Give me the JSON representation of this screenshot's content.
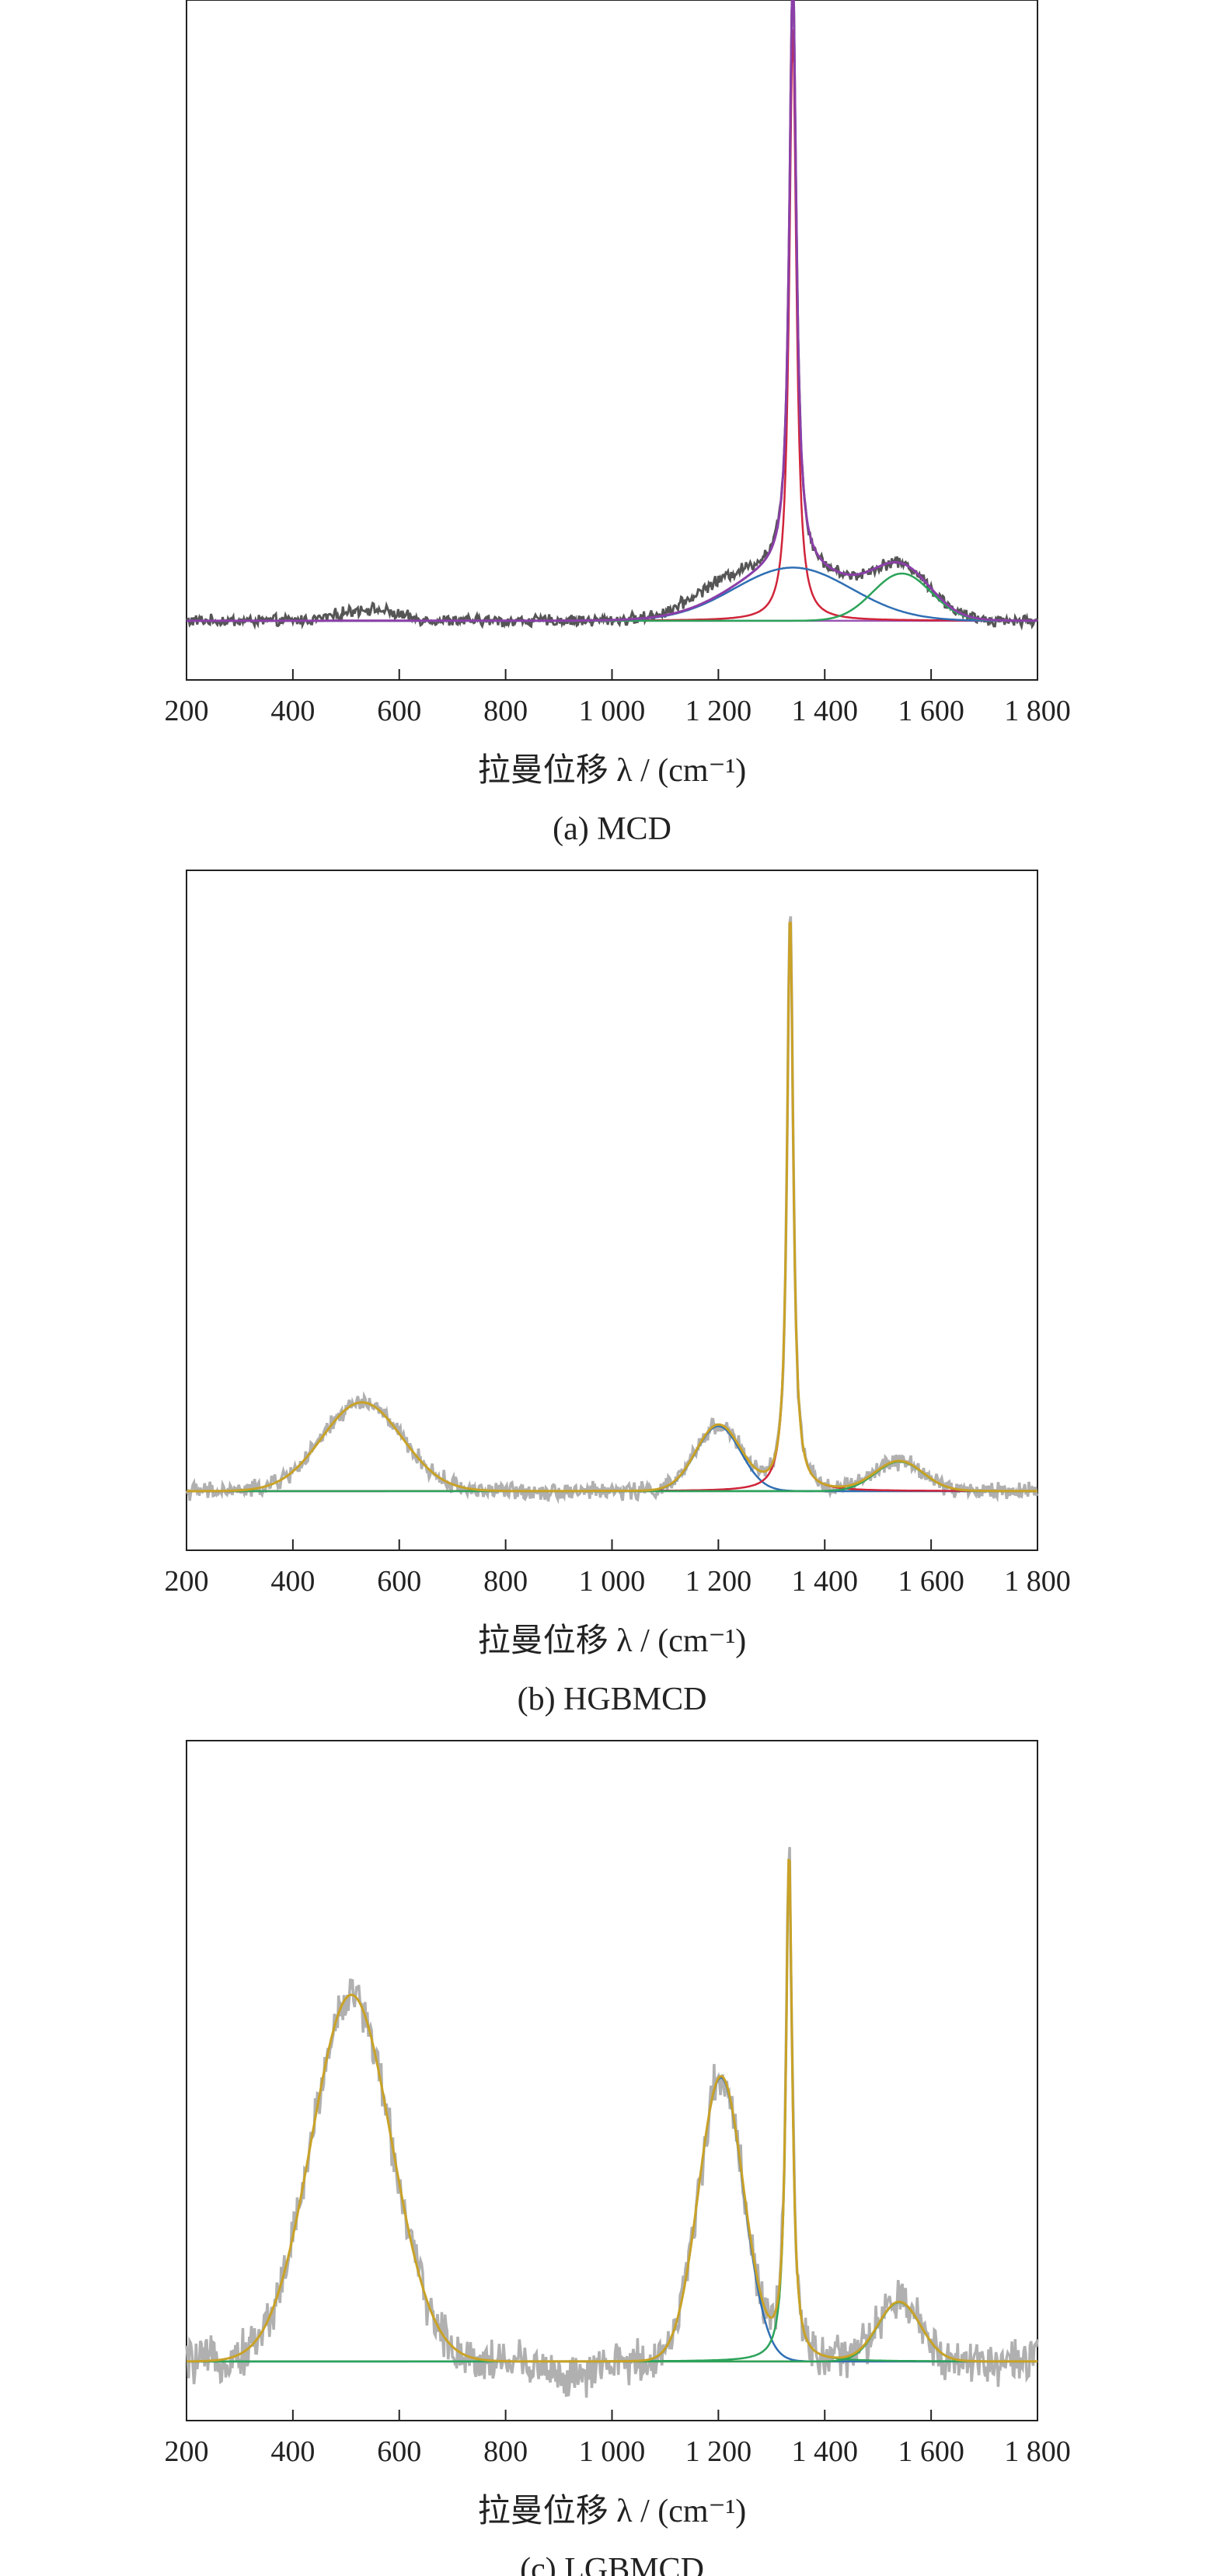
{
  "chart_data": [
    {
      "type": "line",
      "caption": "(a) MCD",
      "xlabel": "拉曼位移 λ / (cm⁻¹)",
      "ylabel": "",
      "xlim": [
        200,
        1800
      ],
      "ylim": [
        -0.1,
        1.05
      ],
      "xticks": [
        200,
        400,
        600,
        800,
        1000,
        1200,
        1400,
        1600,
        1800
      ],
      "xtick_labels": [
        "200",
        "400",
        "600",
        "800",
        "1 000",
        "1 200",
        "1 400",
        "1 600",
        "1 800"
      ],
      "grid": false,
      "noise": 0.008,
      "noise_color": "#555555",
      "components": [
        {
          "center": 1340,
          "height": 1.0,
          "width": 8,
          "color": "#d0243a"
        },
        {
          "center": 1340,
          "height": 0.09,
          "width": 110,
          "color": "#2f6fb3"
        },
        {
          "center": 1545,
          "height": 0.08,
          "width": 55,
          "color": "#2ca35a"
        }
      ],
      "baseline_color": "#9b55b5",
      "fit_color": "#8b3fa8",
      "extra_signal": [
        {
          "center": 540,
          "height": 0.02,
          "width": 50
        },
        {
          "center": 1200,
          "height": 0.025,
          "width": 60
        }
      ]
    },
    {
      "type": "line",
      "caption": "(b) HGBMCD",
      "xlabel": "拉曼位移 λ / (cm⁻¹)",
      "ylabel": "",
      "xlim": [
        200,
        1800
      ],
      "ylim": [
        -0.1,
        1.05
      ],
      "xticks": [
        200,
        400,
        600,
        800,
        1000,
        1200,
        1400,
        1600,
        1800
      ],
      "xtick_labels": [
        "200",
        "400",
        "600",
        "800",
        "1 000",
        "1 200",
        "1 400",
        "1 600",
        "1 800"
      ],
      "grid": false,
      "noise": 0.012,
      "noise_color": "#b0b0b0",
      "components": [
        {
          "center": 530,
          "height": 0.15,
          "width": 75,
          "color": "#2ca35a"
        },
        {
          "center": 1200,
          "height": 0.11,
          "width": 42,
          "color": "#2f6fb3"
        },
        {
          "center": 1335,
          "height": 0.98,
          "width": 7,
          "color": "#d0243a"
        },
        {
          "center": 1540,
          "height": 0.05,
          "width": 45,
          "color": "#2ca35a"
        }
      ],
      "baseline_color": "#9b55b5",
      "fit_color": "#c9a227",
      "extra_signal": []
    },
    {
      "type": "line",
      "caption": "(c) LGBMCD",
      "xlabel": "拉曼位移 λ / (cm⁻¹)",
      "ylabel": "",
      "xlim": [
        200,
        1800
      ],
      "ylim": [
        -0.1,
        1.05
      ],
      "xticks": [
        200,
        400,
        600,
        800,
        1000,
        1200,
        1400,
        1600,
        1800
      ],
      "xtick_labels": [
        "200",
        "400",
        "600",
        "800",
        "1 000",
        "1 200",
        "1 400",
        "1 600",
        "1 800"
      ],
      "grid": false,
      "noise": 0.03,
      "noise_color": "#b0b0b0",
      "components": [
        {
          "center": 510,
          "height": 0.62,
          "width": 75,
          "color": "#c9a227"
        },
        {
          "center": 1205,
          "height": 0.48,
          "width": 42,
          "color": "#2f6fb3"
        },
        {
          "center": 1333,
          "height": 0.86,
          "width": 7,
          "color": "#2ca35a"
        },
        {
          "center": 1540,
          "height": 0.1,
          "width": 40,
          "color": "#2ca35a"
        }
      ],
      "baseline_color": "#9b55b5",
      "fit_color": "#c9a227",
      "extra_signal": [
        {
          "center": 930,
          "height": -0.03,
          "width": 40
        }
      ]
    }
  ]
}
